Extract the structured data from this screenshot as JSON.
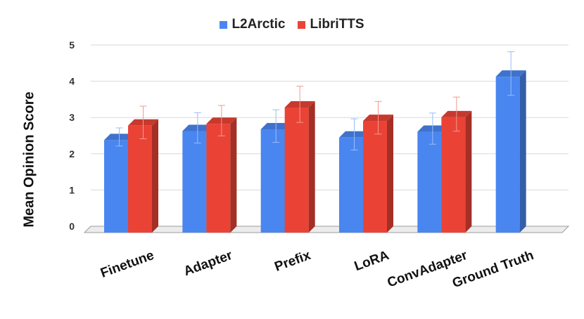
{
  "chart_data": {
    "type": "bar",
    "categories": [
      "Finetune",
      "Adapter",
      "Prefix",
      "LoRA",
      "ConvAdapter",
      "Ground Truth"
    ],
    "series": [
      {
        "name": "L2Arctic",
        "color": "#4a86f0",
        "values": [
          2.55,
          2.8,
          2.85,
          2.62,
          2.78,
          4.3
        ],
        "error": [
          0.25,
          0.42,
          0.45,
          0.43,
          0.43,
          0.6
        ]
      },
      {
        "name": "LibriTTS",
        "color": "#ea4335",
        "values": [
          2.95,
          3.0,
          3.45,
          3.08,
          3.18,
          null
        ],
        "error": [
          0.45,
          0.42,
          0.5,
          0.45,
          0.47,
          null
        ]
      }
    ],
    "ylabel": "Mean Opinion Score",
    "xlabel": "",
    "ylim": [
      0,
      5
    ],
    "yticks": [
      0,
      1,
      2,
      3,
      4,
      5
    ],
    "grid": true,
    "legend_position": "top-center"
  }
}
